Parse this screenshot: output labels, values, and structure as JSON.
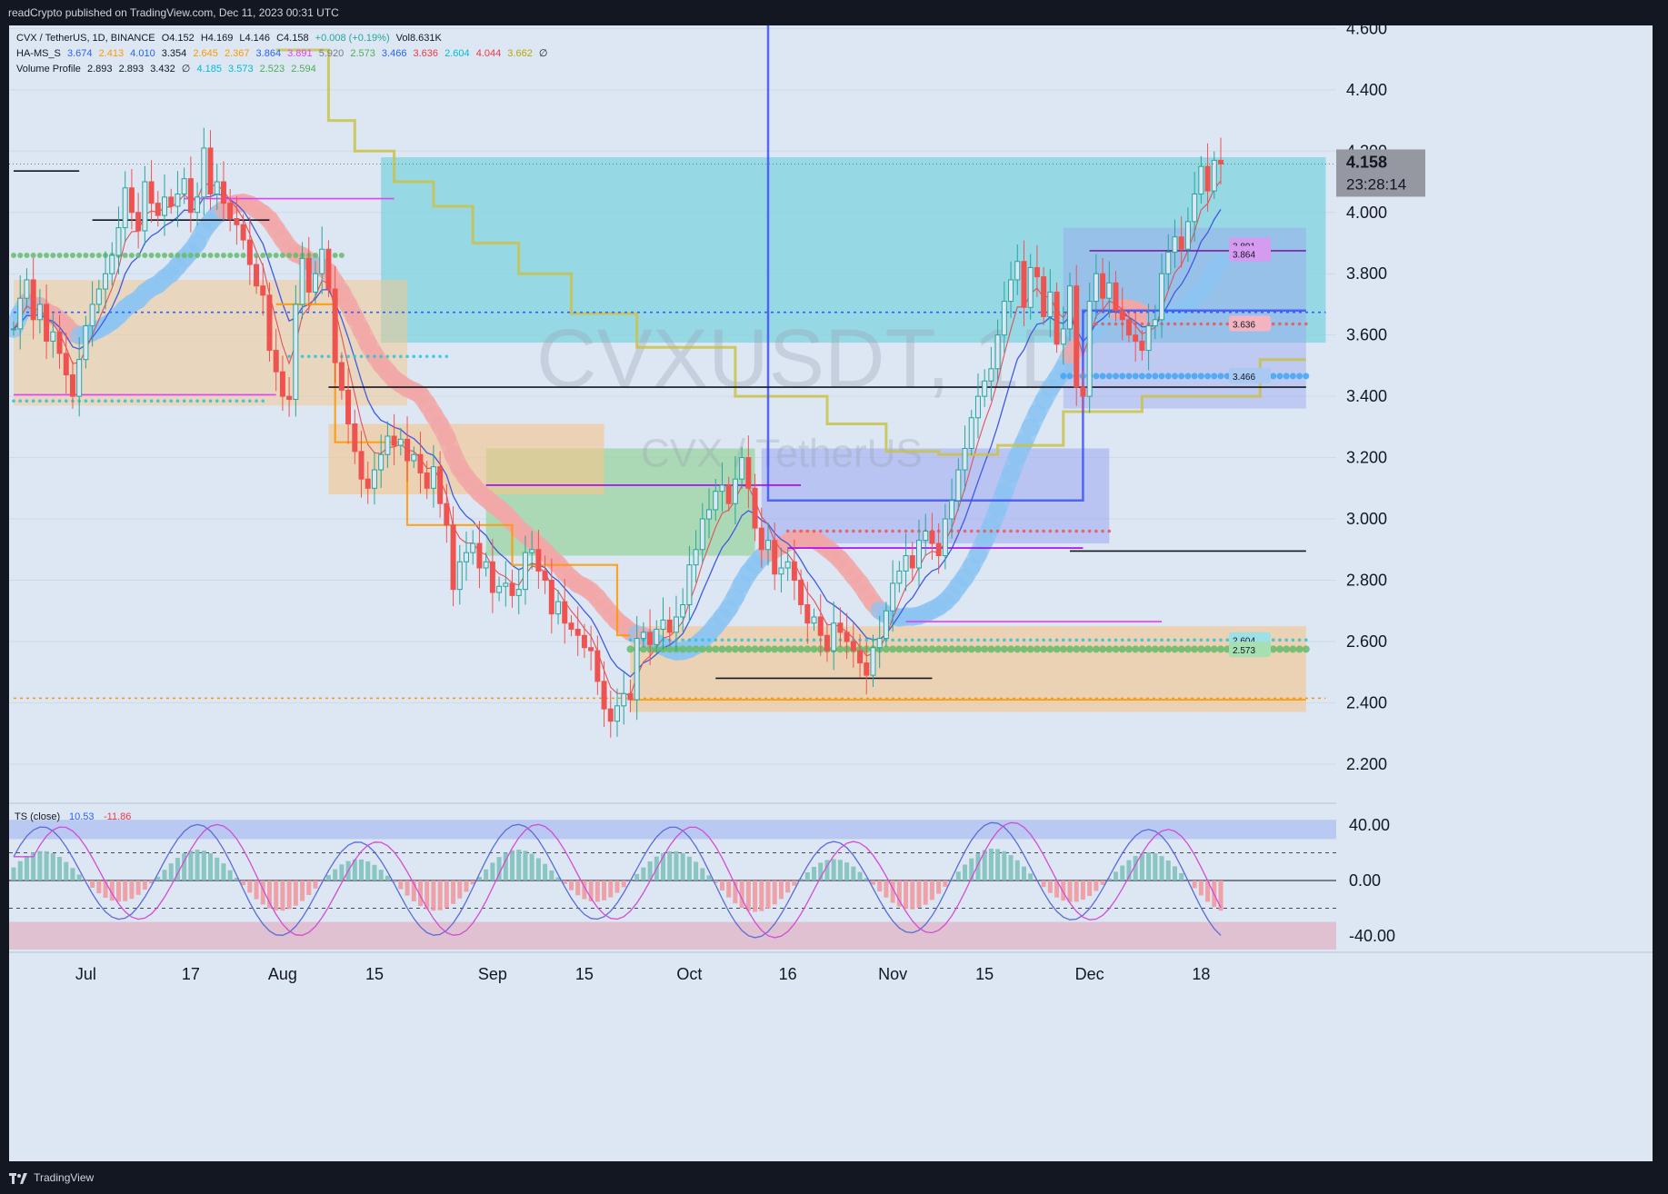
{
  "header": {
    "publish_line": "readCrypto published on TradingView.com, Dec 11, 2023 00:31 UTC"
  },
  "footer": {
    "brand": "TradingView"
  },
  "colors": {
    "bg": "#dde7f4",
    "frame": "#131722",
    "up": "#26a69a",
    "down": "#ef5350",
    "price_axis_tag": "#9598a1",
    "cyan_zone": "#7fd3e0",
    "blue_zone": "#9aa7f0",
    "green_zone": "#9ad4a0",
    "orange_zone": "#f6c58a",
    "blue_band": "#8cc4f2",
    "red_band": "#f1a7a7",
    "ts_line_blue": "#5b6cd8",
    "ts_line_magenta": "#d14dd6"
  },
  "legend": {
    "line1": {
      "symbol": "CVX / TetherUS, 1D, BINANCE",
      "values": [
        "O4.152",
        "H4.169",
        "L4.146",
        "C4.158",
        "+0.008 (+0.19%)",
        "Vol8.631K"
      ]
    },
    "line2": {
      "name": "HA-MS_S",
      "values": [
        "3.674",
        "2.413",
        "4.010",
        "3.354",
        "2.645",
        "2.367",
        "3.864",
        "3.891",
        "5.920",
        "2.573",
        "3.466",
        "3.636",
        "2.604",
        "4.044",
        "3.662",
        "∅"
      ]
    },
    "line3": {
      "name": "Volume Profile",
      "values": [
        "2.893",
        "2.893",
        "3.432",
        "∅",
        "4.185",
        "3.573",
        "2.523",
        "2.594"
      ]
    }
  },
  "watermark": {
    "main": "CVXUSDT, 1D",
    "sub": "CVX / TetherUS"
  },
  "last_price": {
    "value": "4.158",
    "countdown": "23:28:14"
  },
  "level_tags": [
    {
      "text": "3.891",
      "value": 3.891,
      "color": "#d59bf0"
    },
    {
      "text": "3.864",
      "value": 3.864,
      "color": "#d59bf0"
    },
    {
      "text": "3.636",
      "value": 3.636,
      "color": "#f3b3c0"
    },
    {
      "text": "3.466",
      "value": 3.466,
      "color": "#a9c9f2"
    },
    {
      "text": "2.604",
      "value": 2.604,
      "color": "#9fdfe6"
    },
    {
      "text": "2.573",
      "value": 2.573,
      "color": "#a6dfb1"
    }
  ],
  "ts_indicator": {
    "title": "TS (close)",
    "value1": "10.53",
    "value2": "-11.86"
  },
  "chart_data": {
    "type": "candlestick",
    "x_axis_labels": [
      "Jul",
      "17",
      "Aug",
      "15",
      "Sep",
      "15",
      "Oct",
      "16",
      "Nov",
      "15",
      "Dec",
      "18"
    ],
    "price_axis_ticks": [
      "2.200",
      "2.400",
      "2.600",
      "2.800",
      "3.000",
      "3.200",
      "3.400",
      "3.600",
      "3.800",
      "4.000",
      "4.200",
      "4.400",
      "4.600"
    ],
    "price_range": [
      2.09,
      4.61
    ],
    "osc_axis_ticks": [
      "40.00",
      "0.00",
      "-40.00"
    ],
    "osc_range": [
      -52,
      52
    ],
    "closes": [
      3.62,
      3.72,
      3.78,
      3.65,
      3.7,
      3.58,
      3.61,
      3.54,
      3.47,
      3.4,
      3.52,
      3.63,
      3.7,
      3.75,
      3.8,
      3.86,
      3.95,
      4.08,
      4.0,
      3.94,
      4.1,
      4.03,
      3.99,
      4.05,
      4.02,
      4.06,
      4.11,
      4.0,
      4.05,
      4.21,
      4.06,
      4.1,
      4.03,
      3.98,
      3.96,
      3.91,
      3.83,
      3.76,
      3.73,
      3.55,
      3.48,
      3.4,
      3.39,
      3.7,
      3.85,
      3.74,
      3.8,
      3.88,
      3.75,
      3.51,
      3.42,
      3.31,
      3.22,
      3.13,
      3.1,
      3.16,
      3.21,
      3.27,
      3.24,
      3.26,
      3.19,
      3.21,
      3.15,
      3.1,
      3.17,
      3.05,
      2.98,
      2.77,
      2.86,
      2.89,
      2.92,
      2.84,
      2.86,
      2.76,
      2.78,
      2.79,
      2.75,
      2.77,
      2.89,
      2.9,
      2.83,
      2.8,
      2.69,
      2.73,
      2.66,
      2.64,
      2.62,
      2.58,
      2.57,
      2.47,
      2.38,
      2.34,
      2.39,
      2.43,
      2.41,
      2.61,
      2.63,
      2.59,
      2.64,
      2.67,
      2.63,
      2.68,
      2.72,
      2.85,
      2.9,
      3.0,
      3.03,
      3.09,
      3.11,
      3.05,
      3.13,
      3.2,
      3.1,
      2.97,
      2.9,
      2.93,
      2.82,
      2.84,
      2.86,
      2.8,
      2.72,
      2.66,
      2.68,
      2.62,
      2.57,
      2.66,
      2.63,
      2.6,
      2.57,
      2.53,
      2.49,
      2.58,
      2.61,
      2.7,
      2.79,
      2.83,
      2.88,
      2.84,
      2.93,
      2.96,
      2.92,
      2.88,
      3.0,
      3.06,
      3.16,
      3.23,
      3.33,
      3.4,
      3.45,
      3.49,
      3.6,
      3.71,
      3.78,
      3.84,
      3.69,
      3.82,
      3.79,
      3.66,
      3.74,
      3.57,
      3.62,
      3.76,
      3.43,
      3.4,
      3.71,
      3.8,
      3.72,
      3.77,
      3.68,
      3.65,
      3.6,
      3.58,
      3.55,
      3.63,
      3.65,
      3.8,
      3.87,
      3.92,
      3.88,
      3.97,
      4.06,
      4.15,
      4.07,
      4.17,
      4.158
    ]
  }
}
